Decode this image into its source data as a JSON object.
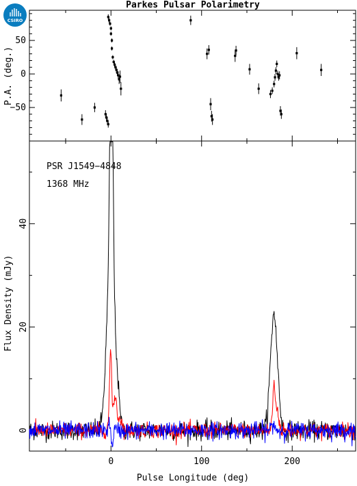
{
  "logo": {
    "text": "CSIRO",
    "color": "#0a7dbf"
  },
  "title": "Parkes Pulsar Polarimetry",
  "annotations": [
    "PSR J1549−4848",
    "1368 MHz"
  ],
  "colors": {
    "total": "#000000",
    "linear": "#ff0000",
    "circular": "#0000ff"
  },
  "chart_data": [
    {
      "type": "scatter",
      "ylabel": "P.A. (deg.)",
      "xlim": [
        -90,
        270
      ],
      "ylim": [
        -100,
        95
      ],
      "yticks": [
        -50,
        0,
        50
      ],
      "error_bars": true,
      "points": [
        {
          "x": -55,
          "y": -32,
          "err": 9
        },
        {
          "x": -32,
          "y": -68,
          "err": 8
        },
        {
          "x": -18,
          "y": -50,
          "err": 7
        },
        {
          "x": -6,
          "y": -60,
          "err": 6
        },
        {
          "x": -5,
          "y": -65,
          "err": 6
        },
        {
          "x": -4,
          "y": -70,
          "err": 6
        },
        {
          "x": -3,
          "y": -75,
          "err": 5
        },
        {
          "x": -3,
          "y": 85,
          "err": 4
        },
        {
          "x": -2,
          "y": 80,
          "err": 4
        },
        {
          "x": -1,
          "y": 75,
          "err": 3
        },
        {
          "x": 0,
          "y": 68,
          "err": 3
        },
        {
          "x": 0,
          "y": 60,
          "err": 3
        },
        {
          "x": 1,
          "y": 50,
          "err": 3
        },
        {
          "x": 1,
          "y": 38,
          "err": 3
        },
        {
          "x": 2,
          "y": 25,
          "err": 3
        },
        {
          "x": 3,
          "y": 18,
          "err": 3
        },
        {
          "x": 4,
          "y": 14,
          "err": 4
        },
        {
          "x": 5,
          "y": 10,
          "err": 4
        },
        {
          "x": 6,
          "y": 6,
          "err": 5
        },
        {
          "x": 7,
          "y": 2,
          "err": 5
        },
        {
          "x": 8,
          "y": -2,
          "err": 6
        },
        {
          "x": 9,
          "y": -8,
          "err": 7
        },
        {
          "x": 10,
          "y": -4,
          "err": 9
        },
        {
          "x": 11,
          "y": -22,
          "err": 10
        },
        {
          "x": 88,
          "y": 80,
          "err": 7
        },
        {
          "x": 106,
          "y": 30,
          "err": 8
        },
        {
          "x": 108,
          "y": 36,
          "err": 7
        },
        {
          "x": 110,
          "y": -45,
          "err": 9
        },
        {
          "x": 111,
          "y": -63,
          "err": 8
        },
        {
          "x": 112,
          "y": -68,
          "err": 8
        },
        {
          "x": 137,
          "y": 27,
          "err": 9
        },
        {
          "x": 138,
          "y": 35,
          "err": 7
        },
        {
          "x": 153,
          "y": 7,
          "err": 8
        },
        {
          "x": 163,
          "y": -22,
          "err": 8
        },
        {
          "x": 176,
          "y": -30,
          "err": 6
        },
        {
          "x": 178,
          "y": -25,
          "err": 5
        },
        {
          "x": 180,
          "y": -15,
          "err": 5
        },
        {
          "x": 181,
          "y": -5,
          "err": 5
        },
        {
          "x": 182,
          "y": 5,
          "err": 5
        },
        {
          "x": 183,
          "y": 15,
          "err": 5
        },
        {
          "x": 184,
          "y": 0,
          "err": 5
        },
        {
          "x": 185,
          "y": -5,
          "err": 5
        },
        {
          "x": 186,
          "y": -2,
          "err": 6
        },
        {
          "x": 187,
          "y": -55,
          "err": 7
        },
        {
          "x": 188,
          "y": -60,
          "err": 7
        },
        {
          "x": 205,
          "y": 31,
          "err": 9
        },
        {
          "x": 232,
          "y": 6,
          "err": 9
        }
      ]
    },
    {
      "type": "line",
      "xlabel": "Pulse Longitude (deg)",
      "ylabel": "Flux Density (mJy)",
      "xlim": [
        -90,
        270
      ],
      "ylim": [
        -4,
        56
      ],
      "xticks": [
        0,
        100,
        200
      ],
      "yticks": [
        0,
        20,
        40
      ],
      "noise_rms": {
        "total": 0.9,
        "linear": 0.7,
        "circular": 0.8
      },
      "series": [
        {
          "key": "total",
          "color": "#000000",
          "components": [
            {
              "center": 0.5,
              "amp": 50.0,
              "width": 1.6
            },
            {
              "center": -1.5,
              "amp": 26.0,
              "width": 4.0
            },
            {
              "center": 2.5,
              "amp": 10.0,
              "width": 3.5
            },
            {
              "center": 7.0,
              "amp": 5.0,
              "width": 2.5
            },
            {
              "center": 177.5,
              "amp": 14.0,
              "width": 3.0
            },
            {
              "center": 182.5,
              "amp": 13.0,
              "width": 3.0
            },
            {
              "center": 180.0,
              "amp": 4.0,
              "width": 1.5
            }
          ]
        },
        {
          "key": "linear",
          "color": "#ff0000",
          "components": [
            {
              "center": -0.5,
              "amp": 12.0,
              "width": 1.0
            },
            {
              "center": 0.5,
              "amp": 4.0,
              "width": 2.5
            },
            {
              "center": 5.0,
              "amp": 6.0,
              "width": 1.5
            },
            {
              "center": 10.0,
              "amp": 2.5,
              "width": 2.0
            },
            {
              "center": 180.0,
              "amp": 9.0,
              "width": 1.5
            },
            {
              "center": 184.0,
              "amp": 4.0,
              "width": 1.3
            }
          ]
        },
        {
          "key": "circular",
          "color": "#0000ff",
          "components": [
            {
              "center": -1.5,
              "amp": 1.5,
              "width": 1.5
            },
            {
              "center": 1.0,
              "amp": -4.0,
              "width": 0.9
            },
            {
              "center": 179.0,
              "amp": 1.2,
              "width": 2.0
            }
          ]
        }
      ]
    }
  ]
}
